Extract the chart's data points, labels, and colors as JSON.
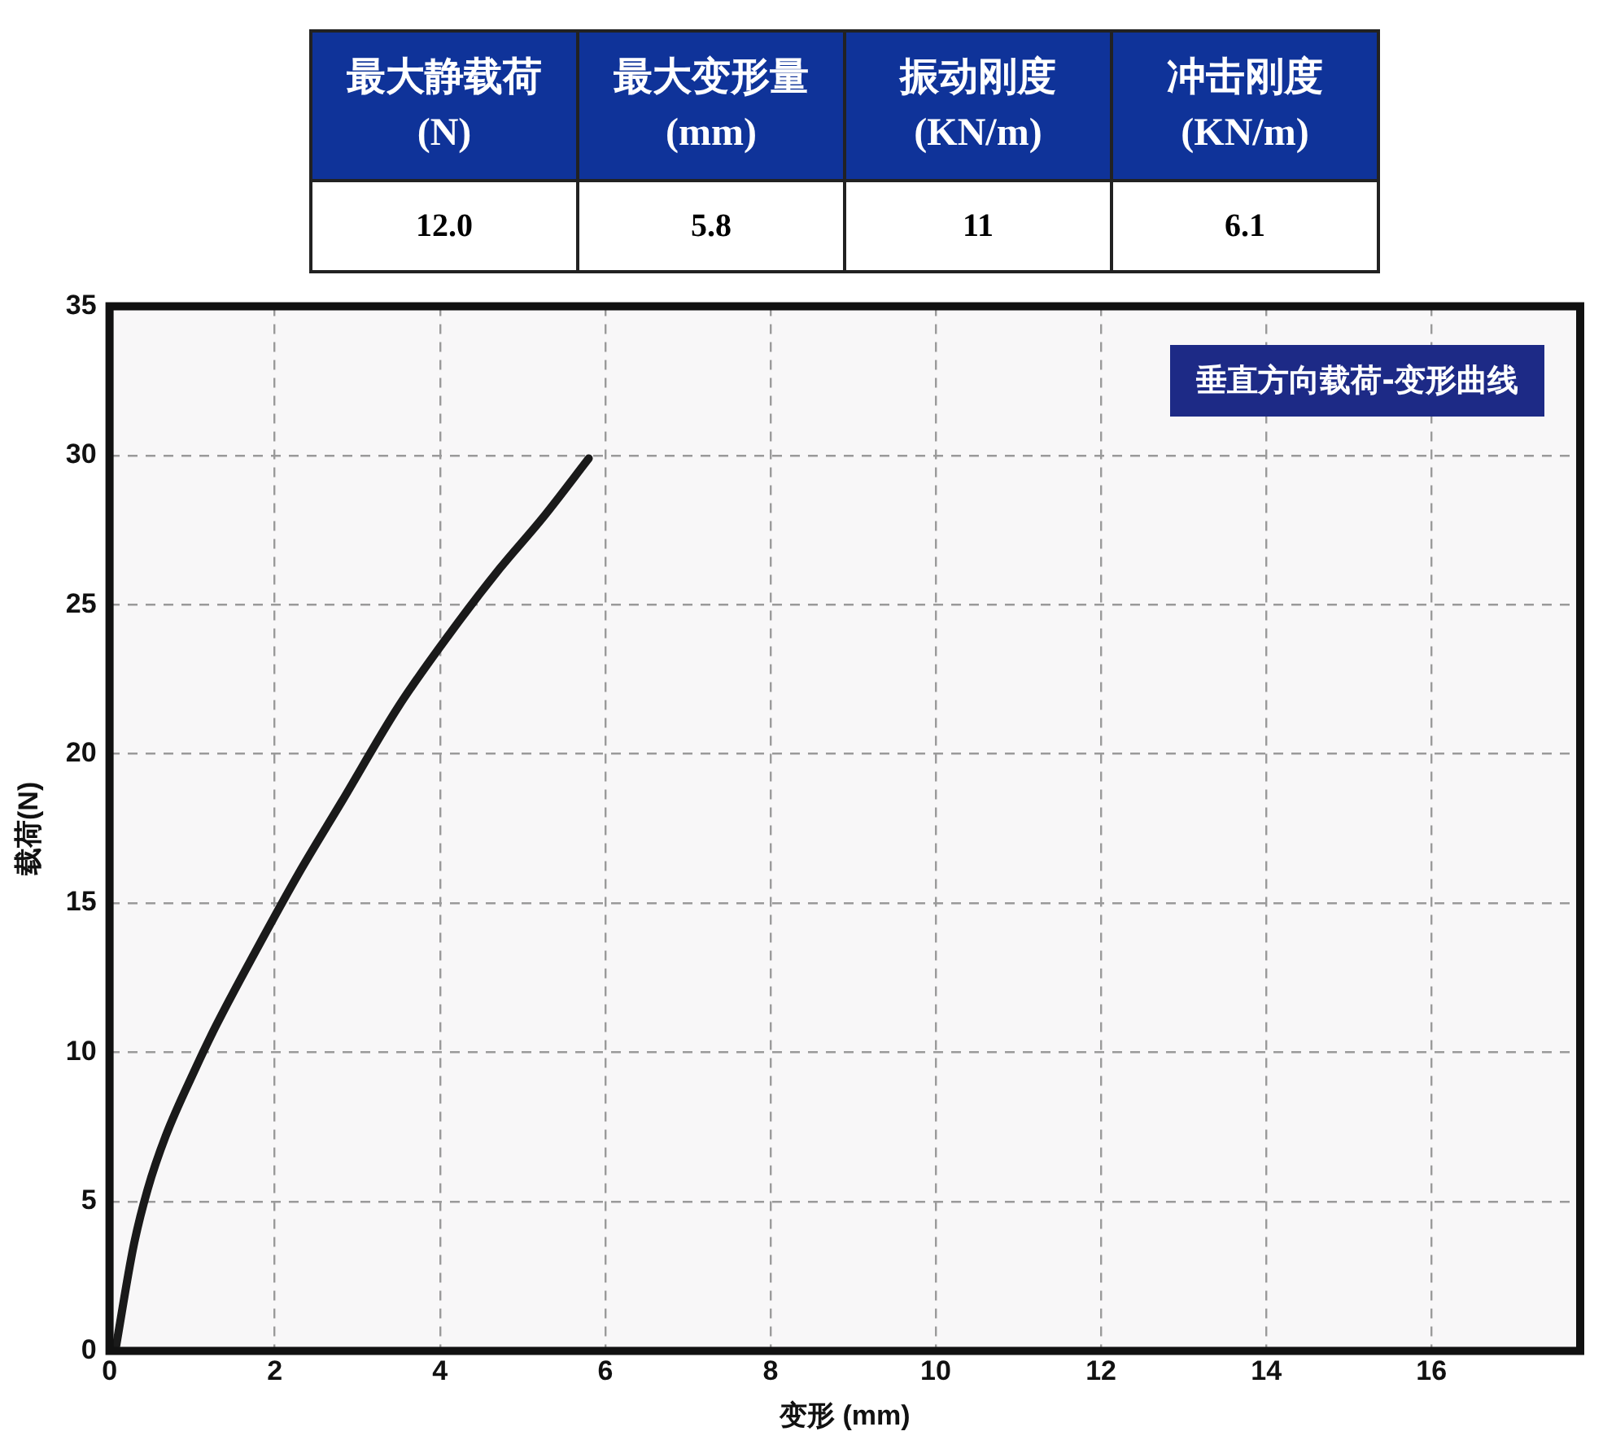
{
  "chart_data": {
    "type": "line",
    "title": "垂直方向载荷-变形曲线",
    "xlabel": "变形 (mm)",
    "ylabel": "载荷(N)",
    "annotations": [
      "最大静载荷(N)",
      "最大变形量(mm)",
      "振动刚度(KN/m)",
      "冲击刚度(KN/m)",
      "12.0",
      "5.8",
      "11",
      "6.1"
    ],
    "x": [
      0.07,
      0.29,
      0.46,
      0.68,
      1.03,
      1.29,
      1.77,
      2.29,
      2.81,
      3.5,
      4.11,
      4.72,
      5.24,
      5.8
    ],
    "values": [
      0,
      3.5,
      5.4,
      7.2,
      9.4,
      10.9,
      13.4,
      16.0,
      18.4,
      21.6,
      24.0,
      26.2,
      27.9,
      29.9
    ],
    "color": "#1a1a1a",
    "xlim": [
      0,
      17.8
    ],
    "ylim": [
      0,
      35
    ],
    "xticks": [
      0,
      2,
      4,
      6,
      8,
      10,
      12,
      14,
      16
    ],
    "yticks": [
      0,
      5,
      10,
      15,
      20,
      25,
      30,
      35
    ],
    "grid": true,
    "legend": false,
    "marker": "none",
    "line_style": "solid"
  }
}
